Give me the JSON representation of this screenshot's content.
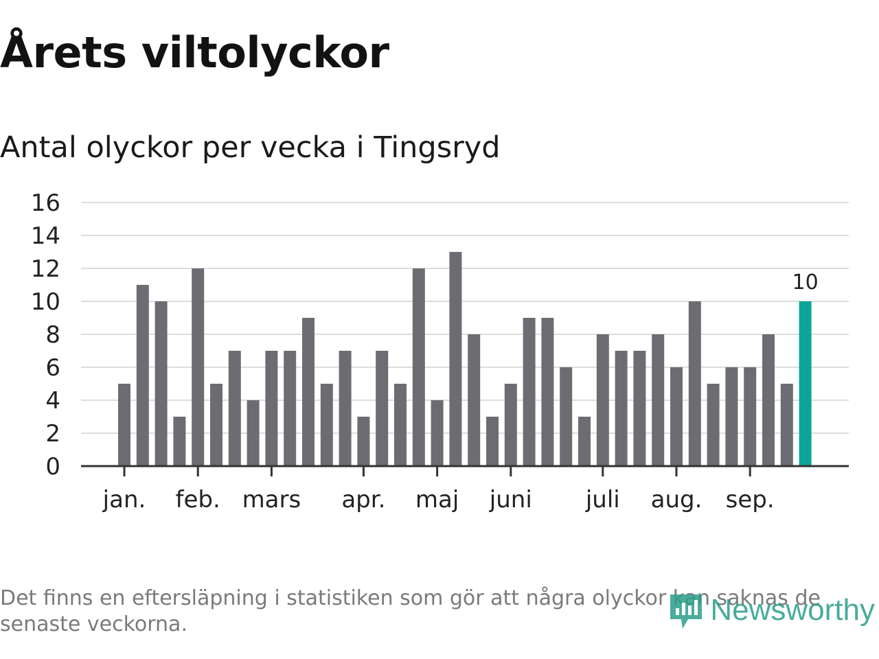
{
  "chart_data": {
    "type": "bar",
    "title": "Årets viltolyckor",
    "subtitle": "Antal olyckor per vecka i Tingsryd",
    "values": [
      5,
      11,
      10,
      3,
      12,
      5,
      7,
      4,
      7,
      7,
      9,
      5,
      7,
      3,
      7,
      5,
      12,
      4,
      13,
      8,
      3,
      5,
      9,
      9,
      6,
      3,
      8,
      7,
      7,
      8,
      6,
      10,
      5,
      6,
      6,
      8,
      5,
      10
    ],
    "ylim": [
      0,
      16
    ],
    "yticks": [
      "0",
      "2",
      "4",
      "6",
      "8",
      "10",
      "12",
      "14",
      "16"
    ],
    "month_labels": [
      {
        "label": "jan.",
        "week_index": 0
      },
      {
        "label": "feb.",
        "week_index": 4
      },
      {
        "label": "mars",
        "week_index": 8
      },
      {
        "label": "apr.",
        "week_index": 13
      },
      {
        "label": "maj",
        "week_index": 17
      },
      {
        "label": "juni",
        "week_index": 21
      },
      {
        "label": "juli",
        "week_index": 26
      },
      {
        "label": "aug.",
        "week_index": 30
      },
      {
        "label": "sep.",
        "week_index": 34
      }
    ],
    "highlight_last": true,
    "last_value_label": "10",
    "grid": true,
    "colors": {
      "bar": "#6d6c72",
      "highlight": "#0aa597",
      "grid": "#dddddd",
      "axis": "#333333"
    }
  },
  "footnote": "Det finns en eftersläpning i statistiken som gör att några olyckor kan saknas de senaste veckorna.",
  "logo": {
    "text": "Newsworthy",
    "icon": "newsworthy-logo-icon"
  }
}
